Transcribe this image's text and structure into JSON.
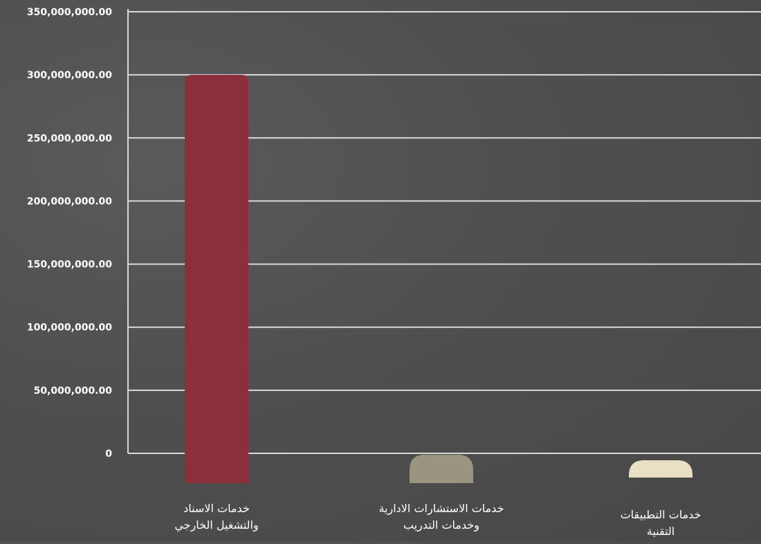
{
  "chart_data": {
    "type": "bar",
    "categories": [
      "خدمات الاسناد والتشغيل الخارجي",
      "خدمات الاستشارات الادارية وخدمات التدريب",
      "خدمات التطبيقات التقنية"
    ],
    "category_lines": [
      [
        "خدمات الاسناد",
        "والتشغيل الخارجي"
      ],
      [
        "خدمات الاستشارات الادارية",
        "وخدمات التدريب"
      ],
      [
        "خدمات التطبيقات",
        "التقنية"
      ]
    ],
    "values": [
      300000000,
      0,
      0
    ],
    "bar_colors": [
      "#8b2f3c",
      "#9a9580",
      "#e8dfc4"
    ],
    "ylim": [
      0,
      350000000
    ],
    "yticks": [
      "350,000,000.00",
      "300,000,000.00",
      "250,000,000.00",
      "200,000,000.00",
      "150,000,000.00",
      "100,000,000.00",
      "50,000,000.00",
      "0"
    ],
    "grid": true,
    "title": "",
    "xlabel": "",
    "ylabel": "",
    "colors": {
      "background": "#4f4f4f",
      "grid": "#d9d9d9",
      "text": "#ffffff"
    }
  }
}
